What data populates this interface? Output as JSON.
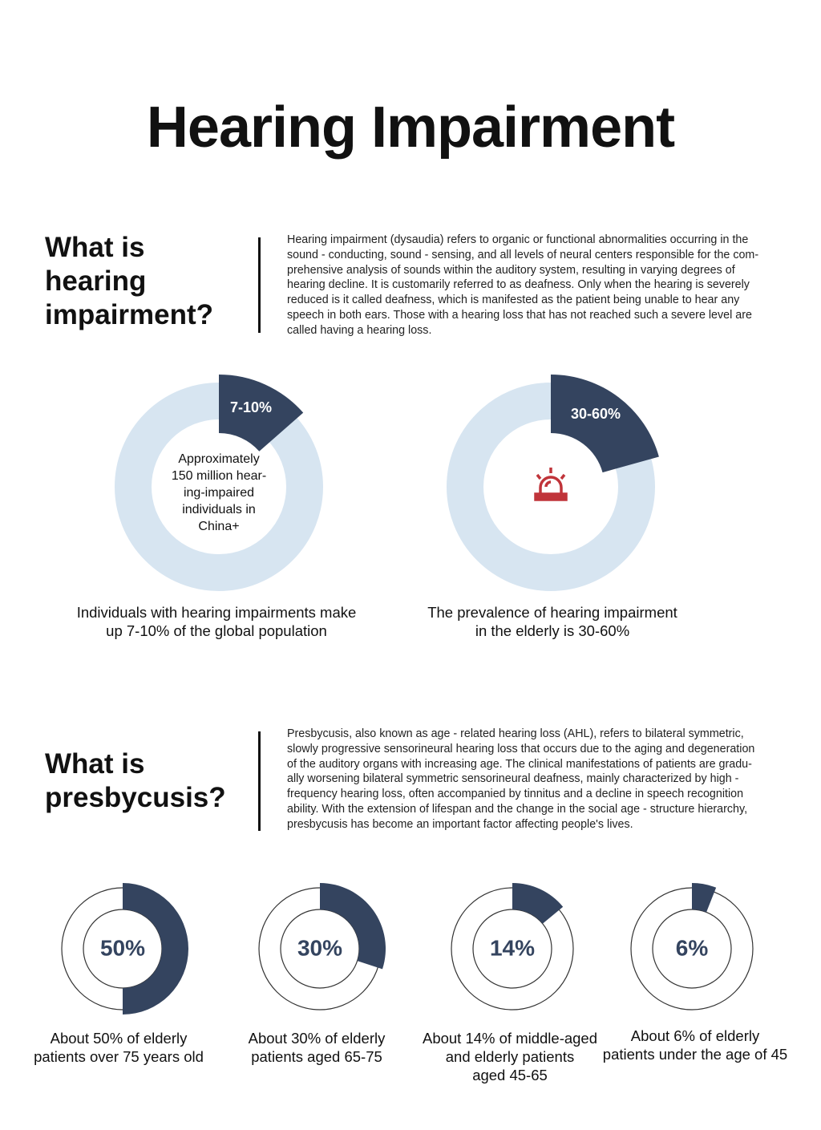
{
  "header": {
    "title": "Hearing Impairment"
  },
  "sections": [
    {
      "heading": "What is hearing impairment?",
      "body": [
        "Hearing impairment (dysaudia) refers to organic or functional abnormalities occurring in the",
        "sound - conducting, sound - sensing, and all levels of neural centers responsible for the com-",
        "prehensive analysis of sounds within the auditory system, resulting in varying degrees of",
        "hearing decline. It is customarily referred to as deafness. Only when the hearing is severely",
        "reduced is it called deafness, which is manifested as the patient being unable to hear any",
        "speech in both ears. Those with a hearing loss that has not reached such a severe level are",
        "called having a hearing loss."
      ]
    },
    {
      "heading": "What is presbycusis?",
      "body": [
        "Presbycusis, also known as age - related hearing loss (AHL), refers to bilateral symmetric,",
        "slowly progressive sensorineural hearing loss that occurs due to the aging and degeneration",
        "of the auditory organs with increasing age. The clinical manifestations of patients are gradu-",
        "ally worsening bilateral symmetric sensorineural deafness, mainly characterized by high -",
        "frequency hearing loss, often accompanied by tinnitus and a decline in speech recognition",
        "ability. With the extension of lifespan and the change in the social age - structure hierarchy,",
        "presbycusis has become an important factor affecting people's lives."
      ]
    }
  ],
  "highlights": [
    {
      "badge": "7-10%",
      "center_text": [
        "Approximately",
        "150 million hear-",
        "ing-impaired",
        "individuals in",
        "China+"
      ],
      "caption": [
        "Individuals with hearing impairments make",
        "up 7-10% of the global population"
      ]
    },
    {
      "badge": "30-60%",
      "caption": [
        "The prevalence of hearing impairment",
        "in the elderly is 30-60%"
      ]
    }
  ],
  "stats": [
    {
      "value": 50,
      "label": "50%",
      "caption": [
        "About 50% of elderly",
        "patients over 75 years old"
      ]
    },
    {
      "value": 30,
      "label": "30%",
      "caption": [
        "About 30% of elderly",
        "patients aged 65-75"
      ]
    },
    {
      "value": 14,
      "label": "14%",
      "caption": [
        "About 14% of middle-aged",
        "and elderly patients",
        "aged 45-65"
      ]
    },
    {
      "value": 6,
      "label": "6%",
      "caption": [
        "About 6% of elderly",
        "patients under the age of 45"
      ]
    }
  ]
}
